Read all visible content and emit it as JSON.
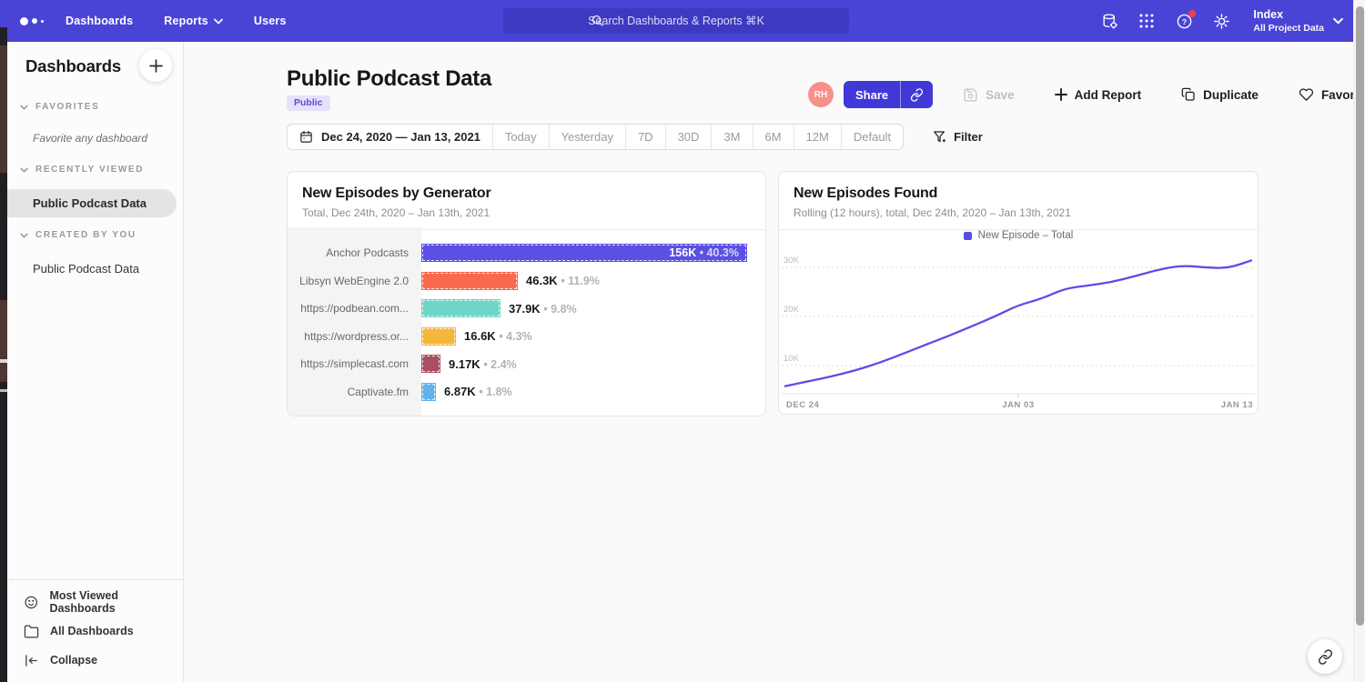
{
  "navbar": {
    "links": {
      "dashboards": "Dashboards",
      "reports": "Reports",
      "users": "Users"
    },
    "search_placeholder": "Search Dashboards & Reports ⌘K",
    "project_name": "Index",
    "project_scope": "All Project Data"
  },
  "sidebar": {
    "title": "Dashboards",
    "sections": {
      "favorites": {
        "label": "FAVORITES",
        "empty": "Favorite any dashboard"
      },
      "recent": {
        "label": "RECENTLY VIEWED",
        "item": "Public Podcast Data"
      },
      "created": {
        "label": "CREATED BY YOU",
        "item": "Public Podcast Data"
      }
    },
    "footer": {
      "most_viewed": "Most Viewed Dashboards",
      "all_dashboards": "All Dashboards",
      "collapse": "Collapse"
    }
  },
  "header": {
    "title": "Public Podcast Data",
    "badge": "Public",
    "avatar_initials": "RH",
    "share": "Share",
    "save": "Save",
    "add_report": "Add Report",
    "duplicate": "Duplicate",
    "favorite": "Favorite"
  },
  "toolbar": {
    "date_range": "Dec 24, 2020 — Jan 13, 2021",
    "presets": [
      "Today",
      "Yesterday",
      "7D",
      "30D",
      "3M",
      "6M",
      "12M",
      "Default"
    ],
    "filter": "Filter"
  },
  "chart_data": [
    {
      "type": "bar",
      "orientation": "horizontal",
      "title": "New Episodes by Generator",
      "subtitle": "Total, Dec 24th, 2020 – Jan 13th, 2021",
      "max_value": 156000,
      "rows": [
        {
          "label": "Anchor Podcasts",
          "value": 156000,
          "value_display": "156K",
          "percent": "40.3%",
          "color": "#5b4fe4",
          "label_inside": true
        },
        {
          "label": "Libsyn WebEngine 2.0",
          "value": 46300,
          "value_display": "46.3K",
          "percent": "11.9%",
          "color": "#f9694d",
          "label_inside": false
        },
        {
          "label": "https://podbean.com...",
          "value": 37900,
          "value_display": "37.9K",
          "percent": "9.8%",
          "color": "#6fd5c6",
          "label_inside": false
        },
        {
          "label": "https://wordpress.or...",
          "value": 16600,
          "value_display": "16.6K",
          "percent": "4.3%",
          "color": "#f5b63e",
          "label_inside": false
        },
        {
          "label": "https://simplecast.com",
          "value": 9170,
          "value_display": "9.17K",
          "percent": "2.4%",
          "color": "#a85063",
          "label_inside": false
        },
        {
          "label": "Captivate.fm",
          "value": 6870,
          "value_display": "6.87K",
          "percent": "1.8%",
          "color": "#63b1ec",
          "label_inside": false
        }
      ]
    },
    {
      "type": "line",
      "title": "New Episodes Found",
      "subtitle": "Rolling (12 hours), total, Dec 24th, 2020 – Jan 13th, 2021",
      "legend": "New Episode – Total",
      "line_color": "#5b4ee4",
      "grid": "dotted horizontal",
      "legend_position": "top-center",
      "x_ticks": [
        "DEC 24",
        "JAN 03",
        "JAN 13"
      ],
      "y_ticks_k": [
        10,
        20,
        30
      ],
      "ylim_k": [
        0,
        34
      ],
      "x_unit": "days (Dec 24, 2020 – Jan 13, 2021)",
      "values_k": [
        5.8,
        6.8,
        7.8,
        9.0,
        10.5,
        12.3,
        14.2,
        16.0,
        18.0,
        20.0,
        22.3,
        23.6,
        25.7,
        26.3,
        27.0,
        28.2,
        29.5,
        30.4,
        30.0,
        29.8,
        31.4
      ]
    }
  ]
}
